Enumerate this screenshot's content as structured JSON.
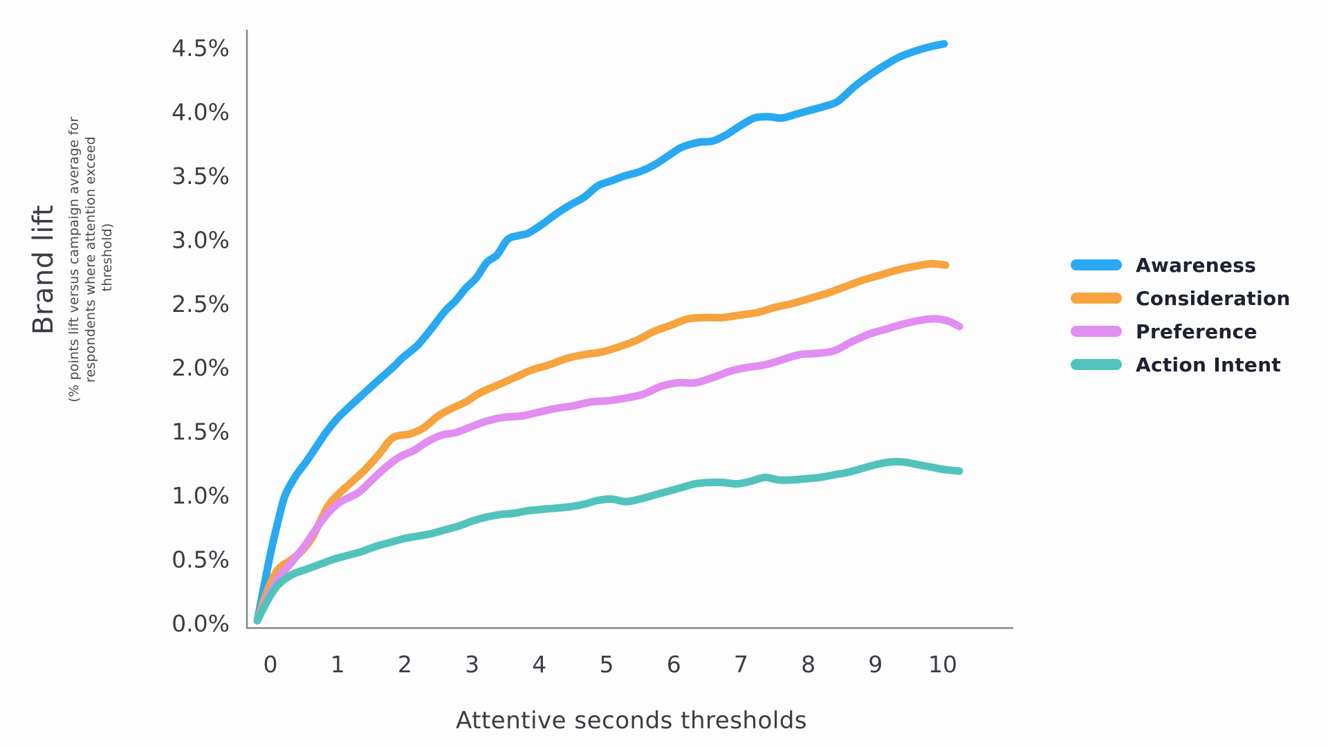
{
  "figure": {
    "background": "#fdfdfe",
    "axis_color": "#85858d",
    "tick_text_color": "#3c3c44",
    "legend_text_color": "#1e2130"
  },
  "y_axis": {
    "title": "Brand lift",
    "subtitle_lines": [
      "(% points lift versus campaign average for",
      "respondents where attention exceed",
      "threshold)"
    ],
    "tick_values": [
      0,
      0.5,
      1.0,
      1.5,
      2.0,
      2.5,
      3.0,
      3.5,
      4.0,
      4.5
    ],
    "tick_labels": [
      "0.0%",
      "0.5%",
      "1.0%",
      "1.5%",
      "2.0%",
      "2.5%",
      "3.0%",
      "3.5%",
      "4.0%",
      "4.5%"
    ]
  },
  "x_axis": {
    "title": "Attentive seconds thresholds",
    "tick_values": [
      0,
      1,
      2,
      3,
      4,
      5,
      6,
      7,
      8,
      9,
      10
    ],
    "tick_labels": [
      "0",
      "1",
      "2",
      "3",
      "4",
      "5",
      "6",
      "7",
      "8",
      "9",
      "10"
    ]
  },
  "legend": {
    "position": "right",
    "items": [
      {
        "label": "Awareness",
        "color": "#29A9F1"
      },
      {
        "label": "Consideration",
        "color": "#F7A33E"
      },
      {
        "label": "Preference",
        "color": "#E18DF1"
      },
      {
        "label": "Action Intent",
        "color": "#52C3BC"
      }
    ]
  },
  "chart_data": {
    "type": "line",
    "title": "",
    "xlabel": "Attentive seconds thresholds",
    "ylabel": "Brand lift (% points lift versus campaign average for respondents where attention exceed threshold)",
    "xlim": [
      0,
      10
    ],
    "ylim": [
      0,
      4.5
    ],
    "grid": false,
    "legend_position": "right",
    "x_units": "seconds",
    "y_units": "percent",
    "series": [
      {
        "name": "Awareness",
        "color": "#29A9F1",
        "points": [
          [
            0,
            0.02
          ],
          [
            0.1,
            0.3
          ],
          [
            0.2,
            0.57
          ],
          [
            0.3,
            0.8
          ],
          [
            0.4,
            1.0
          ],
          [
            0.55,
            1.15
          ],
          [
            0.7,
            1.26
          ],
          [
            0.85,
            1.38
          ],
          [
            1,
            1.5
          ],
          [
            1.15,
            1.6
          ],
          [
            1.3,
            1.68
          ],
          [
            1.5,
            1.78
          ],
          [
            1.7,
            1.88
          ],
          [
            1.95,
            2.0
          ],
          [
            2.1,
            2.08
          ],
          [
            2.3,
            2.17
          ],
          [
            2.5,
            2.3
          ],
          [
            2.7,
            2.44
          ],
          [
            2.85,
            2.52
          ],
          [
            3,
            2.62
          ],
          [
            3.15,
            2.7
          ],
          [
            3.3,
            2.82
          ],
          [
            3.45,
            2.88
          ],
          [
            3.6,
            3.0
          ],
          [
            3.75,
            3.03
          ],
          [
            3.9,
            3.05
          ],
          [
            4.1,
            3.12
          ],
          [
            4.3,
            3.2
          ],
          [
            4.5,
            3.27
          ],
          [
            4.7,
            3.33
          ],
          [
            4.9,
            3.42
          ],
          [
            5.1,
            3.46
          ],
          [
            5.3,
            3.5
          ],
          [
            5.5,
            3.53
          ],
          [
            5.7,
            3.58
          ],
          [
            5.9,
            3.65
          ],
          [
            6.1,
            3.72
          ],
          [
            6.35,
            3.76
          ],
          [
            6.55,
            3.77
          ],
          [
            6.75,
            3.82
          ],
          [
            6.95,
            3.89
          ],
          [
            7.15,
            3.95
          ],
          [
            7.35,
            3.96
          ],
          [
            7.55,
            3.95
          ],
          [
            7.75,
            3.98
          ],
          [
            7.95,
            4.01
          ],
          [
            8.15,
            4.04
          ],
          [
            8.35,
            4.08
          ],
          [
            8.6,
            4.2
          ],
          [
            8.85,
            4.3
          ],
          [
            9.05,
            4.37
          ],
          [
            9.25,
            4.43
          ],
          [
            9.5,
            4.48
          ],
          [
            9.7,
            4.51
          ],
          [
            9.88,
            4.53
          ]
        ]
      },
      {
        "name": "Consideration",
        "color": "#F7A33E",
        "points": [
          [
            0,
            0.02
          ],
          [
            0.15,
            0.26
          ],
          [
            0.3,
            0.42
          ],
          [
            0.5,
            0.5
          ],
          [
            0.65,
            0.57
          ],
          [
            0.8,
            0.68
          ],
          [
            1,
            0.9
          ],
          [
            1.15,
            1.0
          ],
          [
            1.35,
            1.1
          ],
          [
            1.55,
            1.2
          ],
          [
            1.75,
            1.32
          ],
          [
            1.95,
            1.45
          ],
          [
            2.2,
            1.48
          ],
          [
            2.4,
            1.53
          ],
          [
            2.6,
            1.62
          ],
          [
            2.8,
            1.68
          ],
          [
            3,
            1.73
          ],
          [
            3.2,
            1.8
          ],
          [
            3.45,
            1.86
          ],
          [
            3.7,
            1.92
          ],
          [
            3.95,
            1.98
          ],
          [
            4.2,
            2.02
          ],
          [
            4.45,
            2.07
          ],
          [
            4.7,
            2.1
          ],
          [
            4.95,
            2.12
          ],
          [
            5.2,
            2.16
          ],
          [
            5.45,
            2.21
          ],
          [
            5.7,
            2.28
          ],
          [
            5.95,
            2.33
          ],
          [
            6.2,
            2.38
          ],
          [
            6.45,
            2.39
          ],
          [
            6.7,
            2.39
          ],
          [
            6.95,
            2.41
          ],
          [
            7.2,
            2.43
          ],
          [
            7.45,
            2.47
          ],
          [
            7.7,
            2.5
          ],
          [
            7.95,
            2.54
          ],
          [
            8.2,
            2.58
          ],
          [
            8.45,
            2.63
          ],
          [
            8.7,
            2.68
          ],
          [
            8.95,
            2.72
          ],
          [
            9.2,
            2.76
          ],
          [
            9.45,
            2.79
          ],
          [
            9.7,
            2.81
          ],
          [
            9.9,
            2.8
          ]
        ]
      },
      {
        "name": "Preference",
        "color": "#E18DF1",
        "points": [
          [
            0,
            0.02
          ],
          [
            0.15,
            0.2
          ],
          [
            0.3,
            0.35
          ],
          [
            0.5,
            0.48
          ],
          [
            0.7,
            0.62
          ],
          [
            0.9,
            0.78
          ],
          [
            1.05,
            0.88
          ],
          [
            1.2,
            0.95
          ],
          [
            1.45,
            1.02
          ],
          [
            1.65,
            1.12
          ],
          [
            1.85,
            1.22
          ],
          [
            2.05,
            1.3
          ],
          [
            2.25,
            1.35
          ],
          [
            2.45,
            1.42
          ],
          [
            2.65,
            1.47
          ],
          [
            2.85,
            1.49
          ],
          [
            3.05,
            1.53
          ],
          [
            3.3,
            1.58
          ],
          [
            3.55,
            1.61
          ],
          [
            3.8,
            1.62
          ],
          [
            4.05,
            1.65
          ],
          [
            4.3,
            1.68
          ],
          [
            4.55,
            1.7
          ],
          [
            4.8,
            1.73
          ],
          [
            5.05,
            1.74
          ],
          [
            5.3,
            1.76
          ],
          [
            5.55,
            1.79
          ],
          [
            5.8,
            1.85
          ],
          [
            6.05,
            1.88
          ],
          [
            6.3,
            1.88
          ],
          [
            6.55,
            1.92
          ],
          [
            6.8,
            1.97
          ],
          [
            7.05,
            2.0
          ],
          [
            7.3,
            2.02
          ],
          [
            7.55,
            2.06
          ],
          [
            7.8,
            2.1
          ],
          [
            8.05,
            2.11
          ],
          [
            8.3,
            2.13
          ],
          [
            8.55,
            2.2
          ],
          [
            8.8,
            2.26
          ],
          [
            9.05,
            2.3
          ],
          [
            9.3,
            2.34
          ],
          [
            9.55,
            2.37
          ],
          [
            9.75,
            2.38
          ],
          [
            9.95,
            2.36
          ],
          [
            10.1,
            2.32
          ]
        ]
      },
      {
        "name": "Action Intent",
        "color": "#52C3BC",
        "points": [
          [
            0,
            0.02
          ],
          [
            0.15,
            0.18
          ],
          [
            0.3,
            0.3
          ],
          [
            0.5,
            0.38
          ],
          [
            0.7,
            0.42
          ],
          [
            0.9,
            0.46
          ],
          [
            1.1,
            0.5
          ],
          [
            1.3,
            0.53
          ],
          [
            1.5,
            0.56
          ],
          [
            1.7,
            0.6
          ],
          [
            1.9,
            0.63
          ],
          [
            2.1,
            0.66
          ],
          [
            2.3,
            0.68
          ],
          [
            2.5,
            0.7
          ],
          [
            2.7,
            0.73
          ],
          [
            2.9,
            0.76
          ],
          [
            3.1,
            0.8
          ],
          [
            3.3,
            0.83
          ],
          [
            3.5,
            0.85
          ],
          [
            3.7,
            0.86
          ],
          [
            3.9,
            0.88
          ],
          [
            4.1,
            0.89
          ],
          [
            4.3,
            0.9
          ],
          [
            4.5,
            0.91
          ],
          [
            4.7,
            0.93
          ],
          [
            4.9,
            0.96
          ],
          [
            5.1,
            0.97
          ],
          [
            5.3,
            0.95
          ],
          [
            5.5,
            0.97
          ],
          [
            5.7,
            1.0
          ],
          [
            5.9,
            1.03
          ],
          [
            6.1,
            1.06
          ],
          [
            6.3,
            1.09
          ],
          [
            6.5,
            1.1
          ],
          [
            6.7,
            1.1
          ],
          [
            6.9,
            1.09
          ],
          [
            7.1,
            1.11
          ],
          [
            7.3,
            1.14
          ],
          [
            7.5,
            1.12
          ],
          [
            7.7,
            1.12
          ],
          [
            7.9,
            1.13
          ],
          [
            8.1,
            1.14
          ],
          [
            8.3,
            1.16
          ],
          [
            8.5,
            1.18
          ],
          [
            8.7,
            1.21
          ],
          [
            8.9,
            1.24
          ],
          [
            9.1,
            1.26
          ],
          [
            9.3,
            1.26
          ],
          [
            9.5,
            1.24
          ],
          [
            9.7,
            1.22
          ],
          [
            9.9,
            1.2
          ],
          [
            10.1,
            1.19
          ]
        ]
      }
    ]
  }
}
